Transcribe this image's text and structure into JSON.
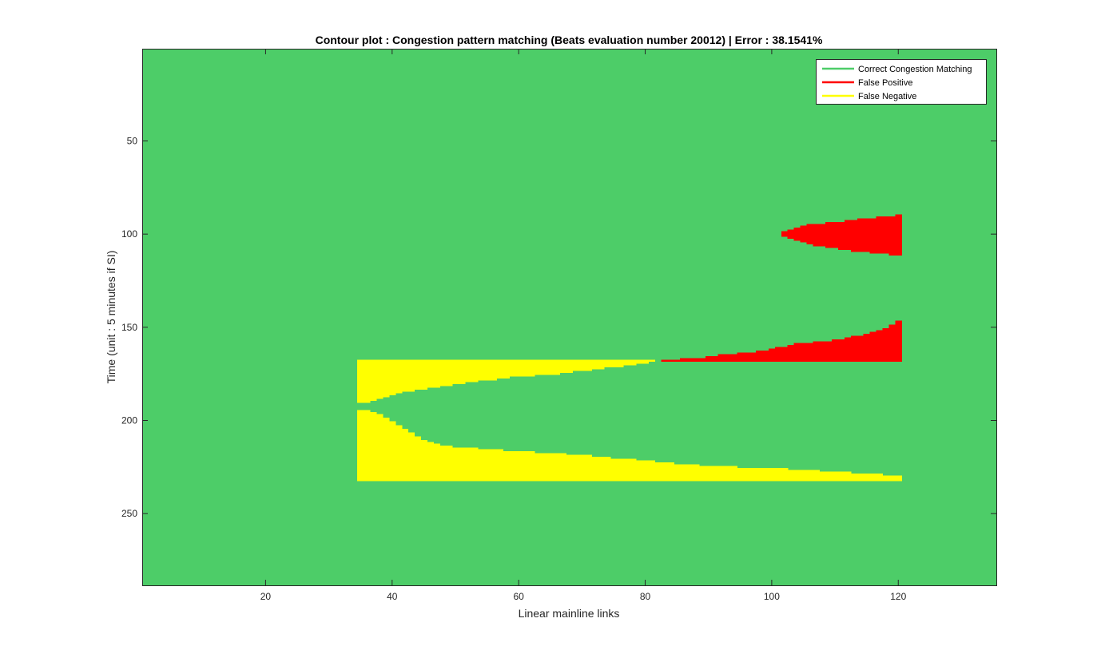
{
  "chart_data": {
    "type": "heatmap",
    "title": "Contour plot : Congestion pattern matching (Beats evaluation number 20012) | Error : 38.1541%",
    "xlabel": "Linear mainline links",
    "ylabel": "Time (unit : 5 minutes if SI)",
    "xlim": [
      0.5,
      135.5
    ],
    "ylim": [
      0.5,
      288.5
    ],
    "y_reversed": true,
    "xticks": [
      20,
      40,
      60,
      80,
      100,
      120
    ],
    "yticks": [
      50,
      100,
      150,
      200,
      250
    ],
    "legend_position": "top-right",
    "background_category": "Correct Congestion Matching",
    "series": [
      {
        "name": "Correct Congestion Matching",
        "color": "#4dcd68"
      },
      {
        "name": "False Positive",
        "color": "#ff0000"
      },
      {
        "name": "False Negative",
        "color": "#ffff00"
      }
    ],
    "regions": [
      {
        "category": "False Positive",
        "color": "#ff0000",
        "x_range": [
          102,
          120
        ],
        "upper_edge": [
          [
            102,
            99
          ],
          [
            104,
            97
          ],
          [
            106,
            95
          ],
          [
            110,
            94
          ],
          [
            114,
            92
          ],
          [
            118,
            91
          ],
          [
            120,
            90
          ]
        ],
        "lower_edge": [
          [
            102,
            101
          ],
          [
            104,
            103
          ],
          [
            106,
            105
          ],
          [
            110,
            107
          ],
          [
            114,
            109
          ],
          [
            118,
            110
          ],
          [
            120,
            111
          ]
        ]
      },
      {
        "category": "False Positive",
        "color": "#ff0000",
        "x_range": [
          83,
          120
        ],
        "upper_edge": [
          [
            83,
            168
          ],
          [
            88,
            167
          ],
          [
            92,
            165
          ],
          [
            96,
            164
          ],
          [
            100,
            162
          ],
          [
            104,
            159
          ],
          [
            108,
            158
          ],
          [
            112,
            156
          ],
          [
            116,
            153
          ],
          [
            118,
            151
          ],
          [
            120,
            147
          ]
        ],
        "lower_edge": [
          [
            83,
            168
          ],
          [
            120,
            168
          ]
        ]
      },
      {
        "category": "False Negative",
        "color": "#ffff00",
        "x_range": [
          35,
          120
        ],
        "top_y": 168,
        "bottom_y": 232,
        "inner_upper_edge": [
          [
            36,
            190
          ],
          [
            38,
            188
          ],
          [
            40,
            186
          ],
          [
            42,
            184
          ],
          [
            46,
            182
          ],
          [
            50,
            180
          ],
          [
            55,
            178
          ],
          [
            60,
            176
          ],
          [
            65,
            175
          ],
          [
            70,
            173
          ],
          [
            75,
            171
          ],
          [
            80,
            169
          ],
          [
            81,
            168
          ]
        ],
        "inner_lower_edge": [
          [
            36,
            195
          ],
          [
            38,
            197
          ],
          [
            40,
            201
          ],
          [
            42,
            205
          ],
          [
            44,
            209
          ],
          [
            46,
            212
          ],
          [
            48,
            214
          ],
          [
            52,
            215
          ],
          [
            60,
            217
          ],
          [
            70,
            219
          ],
          [
            80,
            222
          ],
          [
            90,
            225
          ],
          [
            100,
            226
          ],
          [
            110,
            228
          ],
          [
            116,
            229
          ],
          [
            120,
            230
          ]
        ]
      }
    ]
  }
}
